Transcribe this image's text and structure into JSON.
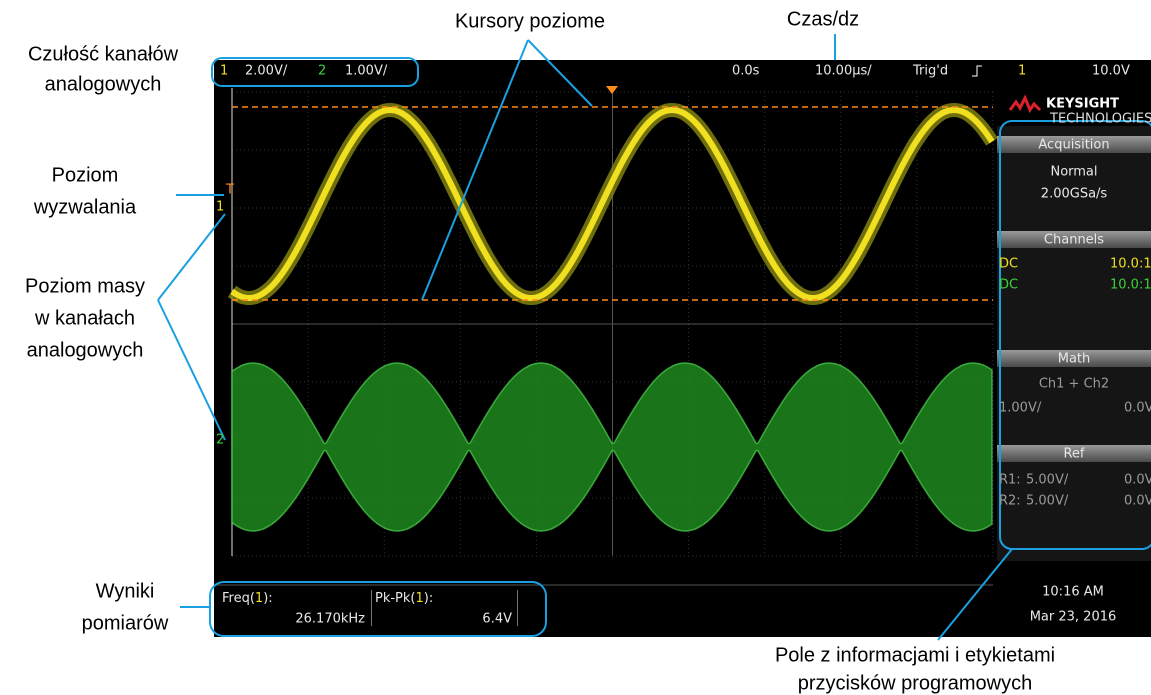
{
  "annotations": {
    "sensitivity": [
      "Czułość kanałów",
      "analogowych"
    ],
    "cursors": "Kursory poziome",
    "time_div": "Czas/dz",
    "trigger_level": [
      "Poziom",
      "wyzwalania"
    ],
    "ground_level": [
      "Poziom masy",
      "w kanałach",
      "analogowych"
    ],
    "measurements": [
      "Wyniki",
      "pomiarów"
    ],
    "softkey_panel": [
      "Pole z informacjami i etykietami",
      "przycisków programowych"
    ]
  },
  "status_bar": {
    "ch1": "1",
    "ch1_scale": "2.00V/",
    "ch2": "2",
    "ch2_scale": "1.00V/",
    "delay": "0.0s",
    "time_scale": "10.00µs/",
    "trigger_state": "Trig'd",
    "trigger_source": "1",
    "trigger_level": "10.0V"
  },
  "markers": {
    "trigger": "T",
    "ch1_ground": "1",
    "ch2_ground": "2"
  },
  "side_panel": {
    "brand": "KEYSIGHT",
    "brand_sub": "TECHNOLOGIES",
    "acquisition": {
      "title": "Acquisition",
      "mode": "Normal",
      "rate": "2.00GSa/s"
    },
    "channels": {
      "title": "Channels",
      "rows": [
        [
          "DC",
          "10.0:1"
        ],
        [
          "DC",
          "10.0:1"
        ]
      ]
    },
    "math": {
      "title": "Math",
      "function": "Ch1 + Ch2",
      "scale": "1.00V/",
      "offset": "0.0V"
    },
    "ref": {
      "title": "Ref",
      "rows": [
        [
          "R1:",
          "5.00V/",
          "0.0V"
        ],
        [
          "R2:",
          "5.00V/",
          "0.0V"
        ]
      ]
    }
  },
  "measurement_bar": {
    "freq": {
      "label": [
        "Freq(",
        "1",
        "):"
      ],
      "value": "26.170kHz"
    },
    "pkpk": {
      "label": [
        "Pk-Pk(",
        "1",
        "):"
      ],
      "value": "6.4V"
    }
  },
  "clock": {
    "time": "10:16 AM",
    "date": "Mar 23, 2016"
  }
}
